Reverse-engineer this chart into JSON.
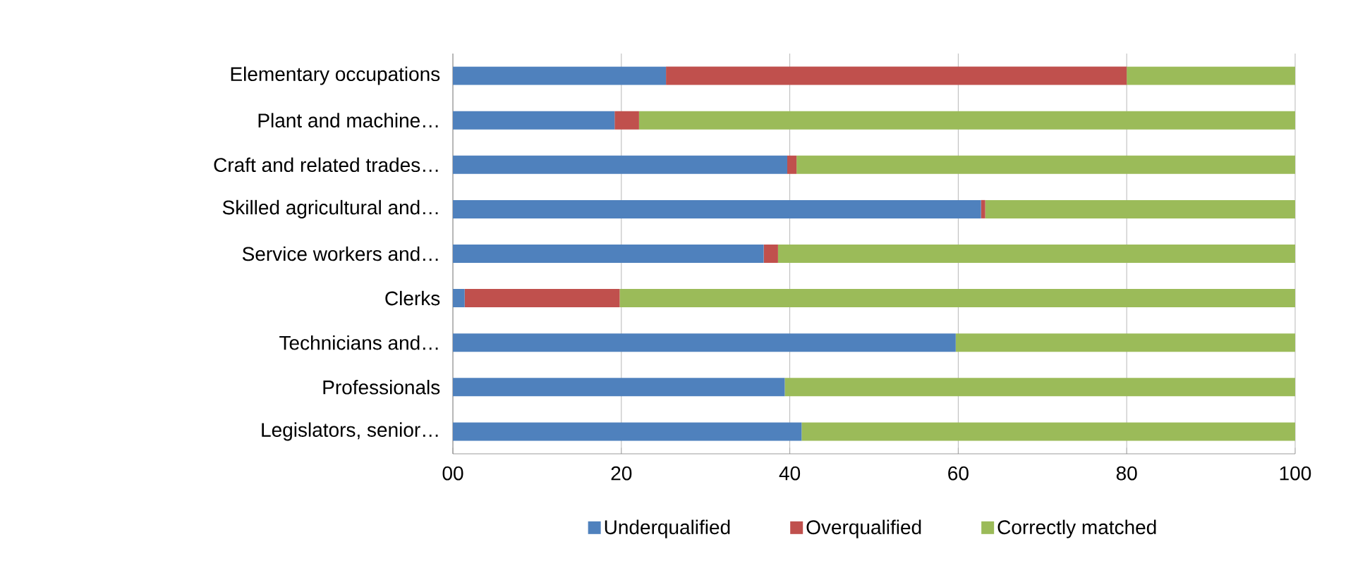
{
  "chart_data": {
    "type": "bar",
    "orientation": "horizontal",
    "stacked": true,
    "categories": [
      "Elementary occupations",
      "Plant and machine…",
      "Craft and related trades…",
      "Skilled agricultural and…",
      "Service workers and…",
      "Clerks",
      "Technicians and…",
      "Professionals",
      "Legislators, senior…"
    ],
    "series": [
      {
        "name": "Underqualified",
        "color": "#4f81bd",
        "values": [
          25.3,
          19.2,
          39.7,
          62.7,
          36.9,
          1.4,
          59.7,
          39.4,
          41.4
        ]
      },
      {
        "name": "Overqualified",
        "color": "#c0504d",
        "values": [
          54.7,
          2.9,
          1.1,
          0.5,
          1.7,
          18.4,
          0,
          0,
          0
        ]
      },
      {
        "name": "Correctly matched",
        "color": "#9bbb59",
        "values": [
          20,
          77.9,
          59.2,
          36.8,
          61.4,
          80.2,
          40.3,
          60.6,
          58.6
        ]
      }
    ],
    "xlim": [
      0,
      100
    ],
    "xticks": [
      {
        "value": 0,
        "label": "00"
      },
      20,
      40,
      60,
      80,
      100
    ],
    "grid": "x",
    "legend": "bottom"
  }
}
